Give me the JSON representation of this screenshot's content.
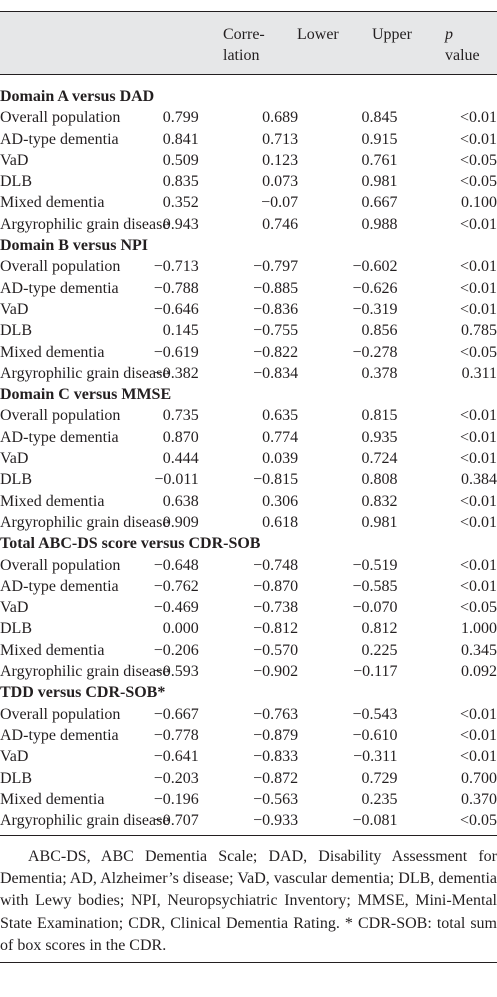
{
  "header": {
    "col1": [
      "Corre-",
      "lation"
    ],
    "col2": "Lower",
    "col3": "Upper",
    "col4": [
      "p",
      "value"
    ]
  },
  "sections": [
    {
      "title": "Domain A versus DAD",
      "rows": [
        {
          "label": "Overall population",
          "corr": "0.799",
          "lower": "0.689",
          "upper": "0.845",
          "p": "<0.01"
        },
        {
          "label": "AD-type dementia",
          "corr": "0.841",
          "lower": "0.713",
          "upper": "0.915",
          "p": "<0.01"
        },
        {
          "label": "VaD",
          "corr": "0.509",
          "lower": "0.123",
          "upper": "0.761",
          "p": "<0.05"
        },
        {
          "label": "DLB",
          "corr": "0.835",
          "lower": "0.073",
          "upper": "0.981",
          "p": "<0.05"
        },
        {
          "label": "Mixed dementia",
          "corr": "0.352",
          "lower": "−0.07",
          "upper": "0.667",
          "p": "0.100"
        },
        {
          "label": "Argyrophilic grain disease",
          "corr": "0.943",
          "lower": "0.746",
          "upper": "0.988",
          "p": "<0.01"
        }
      ]
    },
    {
      "title": "Domain B versus NPI",
      "rows": [
        {
          "label": "Overall population",
          "corr": "−0.713",
          "lower": "−0.797",
          "upper": "−0.602",
          "p": "<0.01"
        },
        {
          "label": "AD-type dementia",
          "corr": "−0.788",
          "lower": "−0.885",
          "upper": "−0.626",
          "p": "<0.01"
        },
        {
          "label": "VaD",
          "corr": "−0.646",
          "lower": "−0.836",
          "upper": "−0.319",
          "p": "<0.01"
        },
        {
          "label": "DLB",
          "corr": "0.145",
          "lower": "−0.755",
          "upper": "0.856",
          "p": "0.785"
        },
        {
          "label": "Mixed dementia",
          "corr": "−0.619",
          "lower": "−0.822",
          "upper": "−0.278",
          "p": "<0.05"
        },
        {
          "label": "Argyrophilic grain disease",
          "corr": "−0.382",
          "lower": "−0.834",
          "upper": "0.378",
          "p": "0.311"
        }
      ]
    },
    {
      "title": "Domain C versus MMSE",
      "rows": [
        {
          "label": "Overall population",
          "corr": "0.735",
          "lower": "0.635",
          "upper": "0.815",
          "p": "<0.01"
        },
        {
          "label": "AD-type dementia",
          "corr": "0.870",
          "lower": "0.774",
          "upper": "0.935",
          "p": "<0.01"
        },
        {
          "label": "VaD",
          "corr": "0.444",
          "lower": "0.039",
          "upper": "0.724",
          "p": "<0.01"
        },
        {
          "label": "DLB",
          "corr": "−0.011",
          "lower": "−0.815",
          "upper": "0.808",
          "p": "0.384"
        },
        {
          "label": "Mixed dementia",
          "corr": "0.638",
          "lower": "0.306",
          "upper": "0.832",
          "p": "<0.01"
        },
        {
          "label": "Argyrophilic grain disease",
          "corr": "0.909",
          "lower": "0.618",
          "upper": "0.981",
          "p": "<0.01"
        }
      ]
    },
    {
      "title": "Total ABC-DS score versus CDR-SOB",
      "rows": [
        {
          "label": "Overall population",
          "corr": "−0.648",
          "lower": "−0.748",
          "upper": "−0.519",
          "p": "<0.01"
        },
        {
          "label": "AD-type dementia",
          "corr": "−0.762",
          "lower": "−0.870",
          "upper": "−0.585",
          "p": "<0.01"
        },
        {
          "label": "VaD",
          "corr": "−0.469",
          "lower": "−0.738",
          "upper": "−0.070",
          "p": "<0.05"
        },
        {
          "label": "DLB",
          "corr": "0.000",
          "lower": "−0.812",
          "upper": "0.812",
          "p": "1.000"
        },
        {
          "label": "Mixed dementia",
          "corr": "−0.206",
          "lower": "−0.570",
          "upper": "0.225",
          "p": "0.345"
        },
        {
          "label": "Argyrophilic grain disease",
          "corr": "−0.593",
          "lower": "−0.902",
          "upper": "−0.117",
          "p": "0.092"
        }
      ]
    },
    {
      "title": "TDD versus CDR-SOB*",
      "rows": [
        {
          "label": "Overall population",
          "corr": "−0.667",
          "lower": "−0.763",
          "upper": "−0.543",
          "p": "<0.01"
        },
        {
          "label": "AD-type dementia",
          "corr": "−0.778",
          "lower": "−0.879",
          "upper": "−0.610",
          "p": "<0.01"
        },
        {
          "label": "VaD",
          "corr": "−0.641",
          "lower": "−0.833",
          "upper": "−0.311",
          "p": "<0.01"
        },
        {
          "label": "DLB",
          "corr": "−0.203",
          "lower": "−0.872",
          "upper": "0.729",
          "p": "0.700"
        },
        {
          "label": "Mixed dementia",
          "corr": "−0.196",
          "lower": "−0.563",
          "upper": "0.235",
          "p": "0.370"
        },
        {
          "label": "Argyrophilic grain disease",
          "corr": "−0.707",
          "lower": "−0.933",
          "upper": "−0.081",
          "p": "<0.05"
        }
      ]
    }
  ],
  "footnote": "ABC-DS, ABC Dementia Scale; DAD, Disability Assessment for Dementia; AD, Alzheimer’s disease; VaD, vascular dementia; DLB, dementia with Lewy bodies; NPI, Neuropsychiatric Inventory; MMSE, Mini-Mental State Examination; CDR, Clinical Dementia Rating. * CDR-SOB: total sum of box scores in the CDR."
}
